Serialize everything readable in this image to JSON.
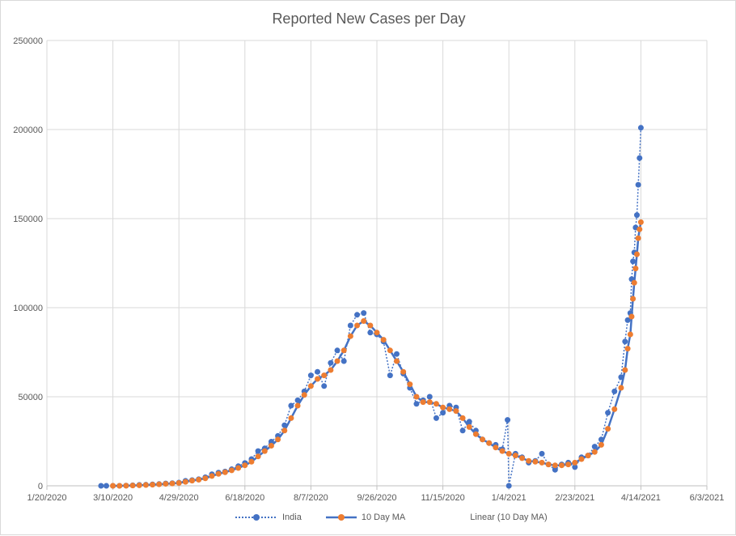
{
  "chart_data": {
    "type": "line",
    "title": "Reported New Cases per Day",
    "xlabel": "",
    "ylabel": "",
    "xlim": [
      "1/20/2020",
      "6/3/2021"
    ],
    "ylim": [
      0,
      250000
    ],
    "x_ticks": [
      "1/20/2020",
      "3/10/2020",
      "4/29/2020",
      "6/18/2020",
      "8/7/2020",
      "9/26/2020",
      "11/15/2020",
      "1/4/2021",
      "2/23/2021",
      "4/14/2021",
      "6/3/2021"
    ],
    "y_ticks": [
      "0",
      "50000",
      "100000",
      "150000",
      "200000",
      "250000"
    ],
    "grid": true,
    "legend_position": "bottom",
    "legend": [
      "India",
      "10 Day MA",
      "Linear (10 Day MA)"
    ],
    "colors": {
      "india": "#4472C4",
      "ma_marker": "#ED7D31",
      "ma_line": "#4472C4"
    },
    "series": [
      {
        "name": "India",
        "points": [
          [
            "3/1/2020",
            0
          ],
          [
            "3/5/2020",
            5
          ],
          [
            "3/10/2020",
            10
          ],
          [
            "3/15/2020",
            20
          ],
          [
            "3/20/2020",
            100
          ],
          [
            "3/25/2020",
            300
          ],
          [
            "3/30/2020",
            500
          ],
          [
            "4/4/2020",
            600
          ],
          [
            "4/9/2020",
            800
          ],
          [
            "4/14/2020",
            1000
          ],
          [
            "4/19/2020",
            1300
          ],
          [
            "4/24/2020",
            1500
          ],
          [
            "4/29/2020",
            1800
          ],
          [
            "5/4/2020",
            2800
          ],
          [
            "5/9/2020",
            3200
          ],
          [
            "5/14/2020",
            3700
          ],
          [
            "5/19/2020",
            4800
          ],
          [
            "5/24/2020",
            6500
          ],
          [
            "5/29/2020",
            7400
          ],
          [
            "6/3/2020",
            8000
          ],
          [
            "6/8/2020",
            9300
          ],
          [
            "6/13/2020",
            11000
          ],
          [
            "6/18/2020",
            12800
          ],
          [
            "6/23/2020",
            15000
          ],
          [
            "6/28/2020",
            19500
          ],
          [
            "7/3/2020",
            21000
          ],
          [
            "7/8/2020",
            24800
          ],
          [
            "7/13/2020",
            28000
          ],
          [
            "7/18/2020",
            34000
          ],
          [
            "7/23/2020",
            45000
          ],
          [
            "7/28/2020",
            48000
          ],
          [
            "8/2/2020",
            53000
          ],
          [
            "8/7/2020",
            62000
          ],
          [
            "8/12/2020",
            64000
          ],
          [
            "8/17/2020",
            56000
          ],
          [
            "8/22/2020",
            69000
          ],
          [
            "8/27/2020",
            76000
          ],
          [
            "9/1/2020",
            70000
          ],
          [
            "9/6/2020",
            90000
          ],
          [
            "9/11/2020",
            96000
          ],
          [
            "9/16/2020",
            97000
          ],
          [
            "9/21/2020",
            86000
          ],
          [
            "9/26/2020",
            85000
          ],
          [
            "10/1/2020",
            81000
          ],
          [
            "10/6/2020",
            62000
          ],
          [
            "10/11/2020",
            74000
          ],
          [
            "10/16/2020",
            63000
          ],
          [
            "10/21/2020",
            55000
          ],
          [
            "10/26/2020",
            46000
          ],
          [
            "10/31/2020",
            48000
          ],
          [
            "11/5/2020",
            50000
          ],
          [
            "11/10/2020",
            38000
          ],
          [
            "11/15/2020",
            41000
          ],
          [
            "11/20/2020",
            45000
          ],
          [
            "11/25/2020",
            44000
          ],
          [
            "11/30/2020",
            31000
          ],
          [
            "12/5/2020",
            36000
          ],
          [
            "12/10/2020",
            31000
          ],
          [
            "12/15/2020",
            26000
          ],
          [
            "12/20/2020",
            24000
          ],
          [
            "12/25/2020",
            23000
          ],
          [
            "12/30/2020",
            20500
          ],
          [
            "1/3/2021",
            37000
          ],
          [
            "1/4/2021",
            0
          ],
          [
            "1/9/2021",
            18000
          ],
          [
            "1/14/2021",
            16000
          ],
          [
            "1/19/2021",
            13000
          ],
          [
            "1/24/2021",
            14000
          ],
          [
            "1/29/2021",
            18000
          ],
          [
            "2/3/2021",
            12000
          ],
          [
            "2/8/2021",
            9000
          ],
          [
            "2/13/2021",
            12000
          ],
          [
            "2/18/2021",
            13000
          ],
          [
            "2/23/2021",
            10500
          ],
          [
            "2/28/2021",
            16000
          ],
          [
            "3/5/2021",
            17000
          ],
          [
            "3/10/2021",
            22000
          ],
          [
            "3/15/2021",
            26000
          ],
          [
            "3/20/2021",
            41000
          ],
          [
            "3/25/2021",
            53000
          ],
          [
            "3/30/2021",
            61000
          ],
          [
            "4/2/2021",
            81000
          ],
          [
            "4/4/2021",
            93000
          ],
          [
            "4/6/2021",
            97000
          ],
          [
            "4/7/2021",
            116000
          ],
          [
            "4/8/2021",
            126000
          ],
          [
            "4/9/2021",
            131000
          ],
          [
            "4/10/2021",
            145000
          ],
          [
            "4/11/2021",
            152000
          ],
          [
            "4/12/2021",
            169000
          ],
          [
            "4/13/2021",
            184000
          ],
          [
            "4/14/2021",
            201000
          ]
        ]
      },
      {
        "name": "10 Day MA",
        "points": [
          [
            "3/10/2020",
            0
          ],
          [
            "3/15/2020",
            10
          ],
          [
            "3/20/2020",
            40
          ],
          [
            "3/25/2020",
            150
          ],
          [
            "3/30/2020",
            300
          ],
          [
            "4/4/2020",
            450
          ],
          [
            "4/9/2020",
            600
          ],
          [
            "4/14/2020",
            850
          ],
          [
            "4/19/2020",
            1100
          ],
          [
            "4/24/2020",
            1300
          ],
          [
            "4/29/2020",
            1600
          ],
          [
            "5/4/2020",
            2200
          ],
          [
            "5/9/2020",
            2900
          ],
          [
            "5/14/2020",
            3400
          ],
          [
            "5/19/2020",
            4200
          ],
          [
            "5/24/2020",
            5500
          ],
          [
            "5/29/2020",
            6700
          ],
          [
            "6/3/2020",
            7600
          ],
          [
            "6/8/2020",
            8700
          ],
          [
            "6/13/2020",
            10000
          ],
          [
            "6/18/2020",
            11500
          ],
          [
            "6/23/2020",
            13500
          ],
          [
            "6/28/2020",
            16500
          ],
          [
            "7/3/2020",
            19500
          ],
          [
            "7/8/2020",
            22500
          ],
          [
            "7/13/2020",
            26000
          ],
          [
            "7/18/2020",
            31000
          ],
          [
            "7/23/2020",
            38000
          ],
          [
            "7/28/2020",
            45000
          ],
          [
            "8/2/2020",
            51000
          ],
          [
            "8/7/2020",
            56000
          ],
          [
            "8/12/2020",
            60000
          ],
          [
            "8/17/2020",
            62000
          ],
          [
            "8/22/2020",
            65000
          ],
          [
            "8/27/2020",
            70000
          ],
          [
            "9/1/2020",
            76000
          ],
          [
            "9/6/2020",
            84000
          ],
          [
            "9/11/2020",
            90000
          ],
          [
            "9/16/2020",
            92500
          ],
          [
            "9/21/2020",
            90000
          ],
          [
            "9/26/2020",
            86000
          ],
          [
            "10/1/2020",
            82000
          ],
          [
            "10/6/2020",
            76000
          ],
          [
            "10/11/2020",
            70000
          ],
          [
            "10/16/2020",
            64000
          ],
          [
            "10/21/2020",
            57000
          ],
          [
            "10/26/2020",
            50000
          ],
          [
            "10/31/2020",
            47000
          ],
          [
            "11/5/2020",
            47000
          ],
          [
            "11/10/2020",
            46000
          ],
          [
            "11/15/2020",
            44000
          ],
          [
            "11/20/2020",
            43000
          ],
          [
            "11/25/2020",
            42000
          ],
          [
            "11/30/2020",
            38000
          ],
          [
            "12/5/2020",
            33000
          ],
          [
            "12/10/2020",
            29000
          ],
          [
            "12/15/2020",
            26000
          ],
          [
            "12/20/2020",
            24000
          ],
          [
            "12/25/2020",
            21500
          ],
          [
            "12/30/2020",
            19500
          ],
          [
            "1/4/2021",
            18000
          ],
          [
            "1/9/2021",
            17000
          ],
          [
            "1/14/2021",
            15500
          ],
          [
            "1/19/2021",
            14000
          ],
          [
            "1/24/2021",
            13500
          ],
          [
            "1/29/2021",
            13000
          ],
          [
            "2/3/2021",
            12000
          ],
          [
            "2/8/2021",
            11500
          ],
          [
            "2/13/2021",
            11500
          ],
          [
            "2/18/2021",
            12000
          ],
          [
            "2/23/2021",
            13000
          ],
          [
            "2/28/2021",
            15000
          ],
          [
            "3/5/2021",
            17000
          ],
          [
            "3/10/2021",
            19000
          ],
          [
            "3/15/2021",
            23000
          ],
          [
            "3/20/2021",
            32000
          ],
          [
            "3/25/2021",
            43000
          ],
          [
            "3/30/2021",
            55000
          ],
          [
            "4/2/2021",
            65000
          ],
          [
            "4/4/2021",
            77000
          ],
          [
            "4/6/2021",
            85000
          ],
          [
            "4/7/2021",
            95000
          ],
          [
            "4/8/2021",
            105000
          ],
          [
            "4/9/2021",
            114000
          ],
          [
            "4/10/2021",
            122000
          ],
          [
            "4/11/2021",
            130000
          ],
          [
            "4/12/2021",
            139000
          ],
          [
            "4/13/2021",
            144000
          ],
          [
            "4/14/2021",
            148000
          ]
        ]
      }
    ]
  }
}
